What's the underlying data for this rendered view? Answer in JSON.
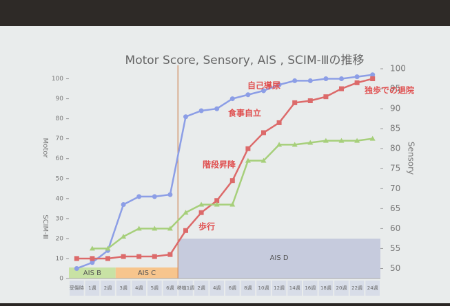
{
  "chart_data": {
    "type": "line",
    "title": "Motor Score, Sensory, AIS , SCIM-Ⅲの推移",
    "categories": [
      "受傷時",
      "1週",
      "2週",
      "3週",
      "4週",
      "5週",
      "6週",
      "移植1週",
      "2週",
      "4週",
      "6週",
      "8週",
      "10週",
      "12週",
      "14週",
      "16週",
      "18週",
      "20週",
      "22週",
      "24週"
    ],
    "series": [
      {
        "name": "Motor",
        "color": "#8c9ee6",
        "marker": "circle",
        "axis": "y",
        "values": [
          5,
          8,
          14,
          37,
          41,
          41,
          42,
          81,
          84,
          85,
          90,
          92,
          94,
          97,
          99,
          99,
          100,
          100,
          101,
          102
        ]
      },
      {
        "name": "SCIM-Ⅲ",
        "color": "#dc6a6a",
        "marker": "square",
        "axis": "y",
        "values": [
          10,
          10,
          10,
          11,
          11,
          11,
          12,
          24,
          33,
          39,
          49,
          65,
          73,
          78,
          88,
          89,
          91,
          95,
          98,
          100
        ]
      },
      {
        "name": "Sensory",
        "color": "#a6cf7a",
        "marker": "triangle",
        "axis": "y2",
        "values": [
          null,
          55,
          55,
          58,
          60,
          60,
          60,
          64,
          66,
          66,
          66,
          77,
          77,
          81,
          81,
          81.5,
          82,
          82,
          82,
          82.5
        ]
      }
    ],
    "ylim": [
      0,
      105
    ],
    "yticks": [
      0,
      10,
      20,
      30,
      40,
      50,
      60,
      70,
      80,
      90,
      100
    ],
    "y2lim": [
      47.5,
      100
    ],
    "y2ticks": [
      50,
      55,
      60,
      65,
      70,
      75,
      80,
      85,
      90,
      95,
      100
    ],
    "ais_bands": [
      "AIS B",
      "AIS C",
      "AIS D"
    ],
    "annotations": [
      "歩行",
      "階段昇降",
      "食事自立",
      "自己導尿",
      "独歩での退院"
    ]
  }
}
